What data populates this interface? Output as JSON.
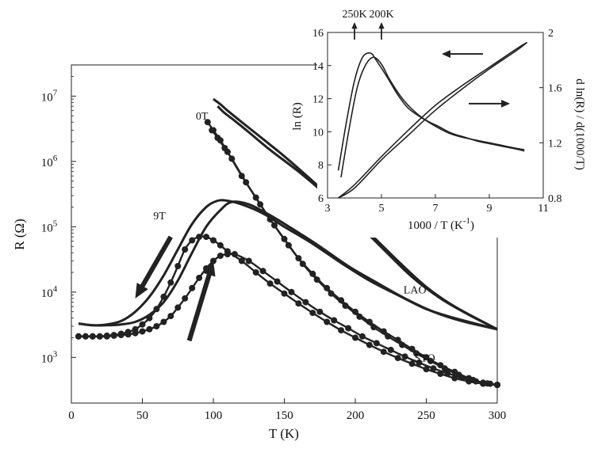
{
  "chart_data": [
    {
      "type": "line",
      "xlabel": "T (K)",
      "ylabel": "R (Ω)",
      "xlim": [
        0,
        300
      ],
      "xticks": [
        "0",
        "50",
        "100",
        "150",
        "200",
        "250",
        "300"
      ],
      "yscale": "log",
      "ylim": [
        200,
        30000000
      ],
      "yticks": [
        {
          "value": 1000,
          "base": "10",
          "exp": "3"
        },
        {
          "value": 10000,
          "base": "10",
          "exp": "4"
        },
        {
          "value": 100000,
          "base": "10",
          "exp": "5"
        },
        {
          "value": 1000000,
          "base": "10",
          "exp": "6"
        },
        {
          "value": 10000000,
          "base": "10",
          "exp": "7"
        }
      ],
      "grid": false,
      "annotations": [
        {
          "text": "0T",
          "x": 92,
          "y": 5000000
        },
        {
          "text": "9T",
          "x": 62,
          "y": 150000
        },
        {
          "text": "LAO",
          "x": 242,
          "y": 11000
        },
        {
          "text": "STO",
          "x": 249,
          "y": 1000
        }
      ],
      "arrows": [
        {
          "meaning": "cooling",
          "from": [
            70,
            70000
          ],
          "to": [
            45,
            8000
          ]
        },
        {
          "meaning": "warming",
          "from": [
            83,
            1800
          ],
          "to": [
            100,
            30000
          ]
        }
      ],
      "series": [
        {
          "film": "LAO",
          "field": "0T",
          "markers": false,
          "x": [
            100,
            105,
            110,
            120,
            135,
            150,
            170,
            190,
            210,
            230,
            250,
            270,
            300
          ],
          "y": [
            9000000,
            7500000,
            6000000,
            4000000,
            2200000,
            1200000,
            500000,
            200000,
            80000,
            30000,
            12000,
            6000,
            2700
          ]
        },
        {
          "film": "LAO",
          "field": "0T",
          "markers": false,
          "x": [
            103,
            108,
            115,
            125,
            140,
            160,
            180,
            200,
            220,
            240,
            260,
            280,
            300
          ],
          "y": [
            7000000,
            5500000,
            4200000,
            2800000,
            1500000,
            700000,
            300000,
            120000,
            45000,
            17000,
            8000,
            4500,
            2700
          ]
        },
        {
          "film": "LAO",
          "field": "9T",
          "markers": false,
          "x": [
            5,
            15,
            25,
            35,
            45,
            55,
            65,
            75,
            85,
            95,
            103,
            110,
            120,
            135,
            150,
            170,
            190,
            210,
            230,
            250,
            270,
            300
          ],
          "y": [
            3300,
            3100,
            3200,
            3600,
            5000,
            8500,
            18000,
            45000,
            110000,
            200000,
            250000,
            250000,
            220000,
            160000,
            100000,
            55000,
            28000,
            15000,
            9000,
            5500,
            4000,
            2700
          ]
        },
        {
          "film": "LAO",
          "field": "9T",
          "markers": false,
          "x": [
            5,
            15,
            25,
            35,
            45,
            55,
            65,
            75,
            85,
            95,
            105,
            113,
            125,
            140,
            155,
            175,
            195,
            215,
            235,
            255,
            275,
            300
          ],
          "y": [
            3300,
            3100,
            3100,
            3200,
            3500,
            4500,
            7000,
            15000,
            40000,
            100000,
            180000,
            240000,
            220000,
            150000,
            95000,
            50000,
            25000,
            14000,
            8000,
            5000,
            3600,
            2700
          ]
        },
        {
          "film": "STO",
          "field": "0T",
          "markers": true,
          "x": [
            96,
            100,
            105,
            110,
            120,
            130,
            140,
            150,
            160,
            170,
            180,
            190,
            200,
            210,
            220,
            230,
            240,
            250,
            260,
            270,
            280,
            290,
            300
          ],
          "y": [
            4000000,
            3000000,
            2100000,
            1400000,
            600000,
            280000,
            130000,
            65000,
            33000,
            19000,
            11500,
            7500,
            5000,
            3500,
            2500,
            1850,
            1350,
            1000,
            760,
            600,
            480,
            410,
            380
          ]
        },
        {
          "film": "STO",
          "field": "0T",
          "markers": true,
          "x": [
            99,
            103,
            108,
            113,
            123,
            133,
            143,
            153,
            163,
            173,
            183,
            193,
            203,
            213,
            223,
            233,
            243,
            253,
            263,
            273,
            283,
            293,
            300
          ],
          "y": [
            3000000,
            2300000,
            1600000,
            1100000,
            480000,
            220000,
            105000,
            52000,
            27000,
            15500,
            9500,
            6200,
            4200,
            2900,
            2100,
            1550,
            1150,
            880,
            680,
            540,
            450,
            400,
            380
          ]
        },
        {
          "film": "STO",
          "field": "9T",
          "markers": true,
          "x": [
            5,
            10,
            15,
            20,
            25,
            30,
            35,
            40,
            45,
            50,
            55,
            60,
            65,
            70,
            75,
            80,
            85,
            90,
            95,
            100,
            105,
            110,
            120,
            130,
            140,
            150,
            160,
            170,
            180,
            190,
            200,
            210,
            220,
            230,
            240,
            250,
            260,
            270,
            280,
            290,
            300
          ],
          "y": [
            2100,
            2100,
            2100,
            2100,
            2150,
            2200,
            2300,
            2450,
            2700,
            3200,
            4000,
            5500,
            8500,
            14000,
            25000,
            45000,
            62000,
            70000,
            70000,
            62000,
            52000,
            42000,
            30000,
            20000,
            13500,
            9500,
            6700,
            4800,
            3500,
            2600,
            2000,
            1550,
            1220,
            980,
            800,
            660,
            560,
            480,
            430,
            395,
            380
          ]
        },
        {
          "film": "STO",
          "field": "9T",
          "markers": true,
          "x": [
            5,
            10,
            15,
            20,
            25,
            30,
            35,
            40,
            45,
            50,
            55,
            60,
            65,
            70,
            75,
            80,
            85,
            90,
            95,
            100,
            105,
            110,
            115,
            125,
            135,
            145,
            155,
            165,
            175,
            185,
            195,
            205,
            215,
            225,
            235,
            245,
            255,
            265,
            275,
            285,
            295,
            300
          ],
          "y": [
            2100,
            2100,
            2100,
            2100,
            2100,
            2150,
            2200,
            2250,
            2350,
            2500,
            2700,
            3000,
            3500,
            4300,
            5800,
            8000,
            11500,
            16500,
            23000,
            30000,
            36000,
            38000,
            38000,
            30000,
            21000,
            14500,
            10000,
            7000,
            5000,
            3700,
            2800,
            2100,
            1650,
            1300,
            1030,
            830,
            680,
            570,
            490,
            430,
            395,
            380
          ]
        }
      ]
    },
    {
      "type": "line",
      "xlabel_main": "1000 / T (K",
      "xlabel_exp": "-1",
      "xlabel_close": ")",
      "ylabel_left": "ln (R)",
      "ylabel_right": "d ln(R) / d(1000/T)",
      "xlim": [
        3,
        11
      ],
      "xticks": [
        "3",
        "5",
        "7",
        "9",
        "11"
      ],
      "ylim_left": [
        6,
        16
      ],
      "yticks_left": [
        "6",
        "8",
        "10",
        "12",
        "14",
        "16"
      ],
      "ylim_right": [
        0.8,
        2
      ],
      "yticks_right": [
        "0.8",
        "1.2",
        "1.6",
        "2"
      ],
      "grid": false,
      "top_markers": [
        {
          "text": "250K",
          "x": 4.0
        },
        {
          "text": "200K",
          "x": 5.0
        }
      ],
      "axis_arrows": [
        {
          "points_to": "left axis",
          "at": [
            8,
            14.7
          ]
        },
        {
          "points_to": "right axis",
          "at": [
            9,
            11.7
          ]
        }
      ],
      "series": [
        {
          "quantity": "ln(R)",
          "axis": "left",
          "x": [
            3.4,
            4,
            5,
            6,
            7,
            8,
            9,
            10,
            10.4
          ],
          "y": [
            6.0,
            6.8,
            8.5,
            10.1,
            11.6,
            12.8,
            13.9,
            15.0,
            15.4
          ]
        },
        {
          "quantity": "ln(R)",
          "axis": "left",
          "x": [
            3.4,
            4,
            5,
            6,
            7,
            8,
            9,
            10,
            10.4
          ],
          "y": [
            6.0,
            6.6,
            8.3,
            9.8,
            11.3,
            12.6,
            13.8,
            14.9,
            15.4
          ]
        },
        {
          "quantity": "d ln(R) / d(1000/T)",
          "axis": "right",
          "x": [
            3.4,
            3.7,
            4.0,
            4.3,
            4.6,
            4.8,
            5.2,
            5.6,
            6.0,
            6.5,
            7.0,
            7.5,
            8.0,
            8.5,
            9.0,
            9.5,
            10.0,
            10.3
          ],
          "y": [
            1.0,
            1.35,
            1.65,
            1.82,
            1.85,
            1.8,
            1.68,
            1.55,
            1.45,
            1.38,
            1.32,
            1.27,
            1.24,
            1.22,
            1.2,
            1.18,
            1.16,
            1.15
          ]
        },
        {
          "quantity": "d ln(R) / d(1000/T)",
          "axis": "right",
          "x": [
            3.5,
            3.8,
            4.1,
            4.4,
            4.7,
            5.0,
            5.3,
            5.7,
            6.1,
            6.6,
            7.1,
            7.6,
            8.1,
            8.6,
            9.1,
            9.6,
            10.1,
            10.3
          ],
          "y": [
            0.95,
            1.3,
            1.6,
            1.76,
            1.82,
            1.77,
            1.66,
            1.54,
            1.45,
            1.37,
            1.32,
            1.27,
            1.24,
            1.21,
            1.19,
            1.17,
            1.15,
            1.14
          ]
        }
      ]
    }
  ]
}
